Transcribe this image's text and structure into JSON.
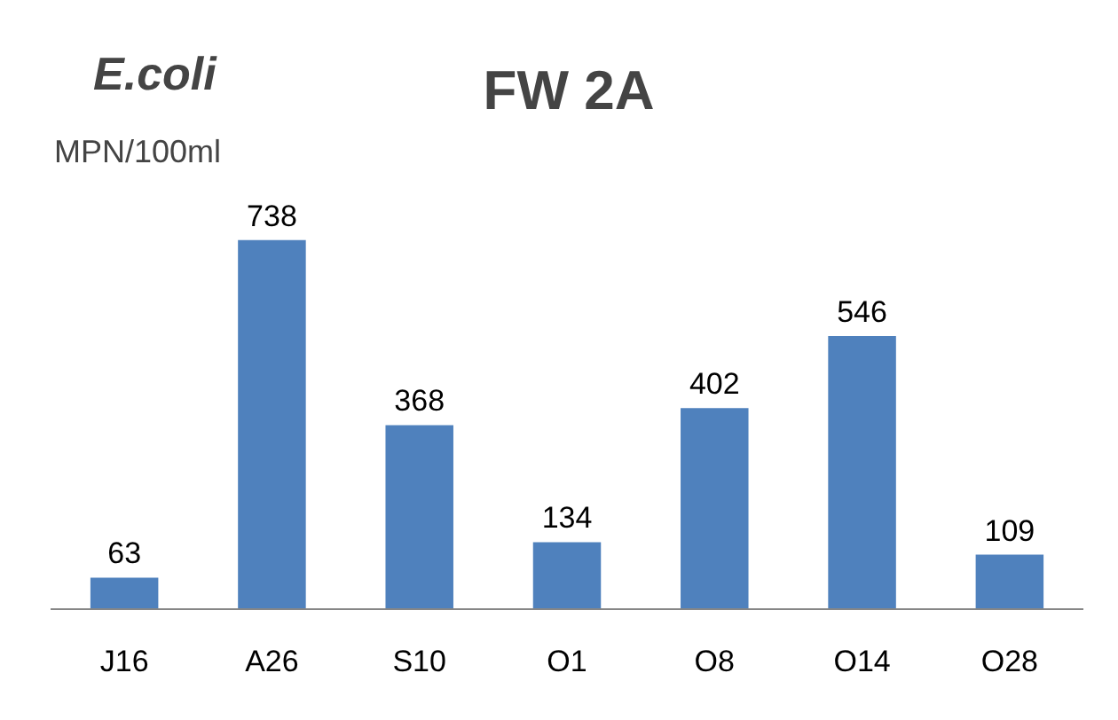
{
  "chart_data": {
    "type": "bar",
    "title": "FW 2A",
    "annotations": [
      "E.coli",
      "MPN/100ml"
    ],
    "categories": [
      "J16",
      "A26",
      "S10",
      "O1",
      "O8",
      "O14",
      "O28"
    ],
    "values": [
      63,
      738,
      368,
      134,
      402,
      546,
      109
    ],
    "color": "#4f81bd",
    "data_labels": true,
    "grid": false
  }
}
